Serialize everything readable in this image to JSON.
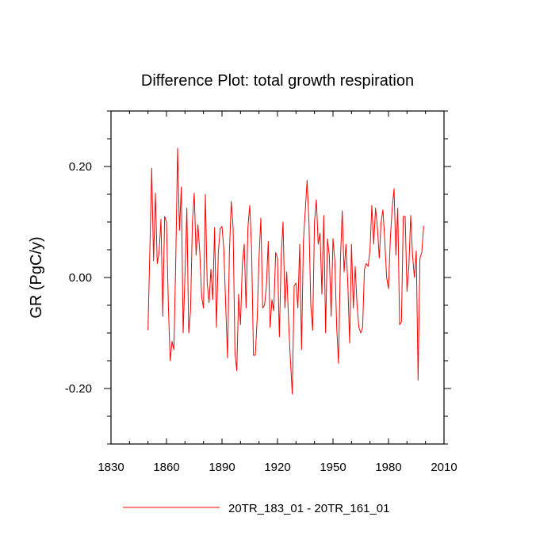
{
  "chart_data": {
    "type": "line",
    "title": "Difference Plot: total growth respiration",
    "xlabel": "",
    "ylabel": "GR  (PgC/y)",
    "xlim": [
      1830,
      2010
    ],
    "ylim": [
      -0.3,
      0.3
    ],
    "xticks": [
      1830,
      1860,
      1890,
      1920,
      1950,
      1980,
      2010
    ],
    "xtick_labels": [
      "1830",
      "1860",
      "1890",
      "1920",
      "1950",
      "1980",
      "2010"
    ],
    "yticks": [
      -0.2,
      0.0,
      0.2
    ],
    "ytick_labels": [
      "-0.20",
      "0.00",
      "0.20"
    ],
    "legend_position": "bottom",
    "series": [
      {
        "name": "20TR_183_01 - 20TR_161_01",
        "color": "#ff0000",
        "x_start": 1850,
        "x_step": 1,
        "values": [
          -0.095,
          0.05,
          0.197,
          0.03,
          0.152,
          0.025,
          0.045,
          0.105,
          -0.07,
          0.11,
          0.1,
          -0.05,
          -0.15,
          -0.115,
          -0.13,
          0.03,
          0.233,
          0.085,
          0.163,
          -0.1,
          0.005,
          0.125,
          -0.1,
          -0.06,
          0.1,
          0.152,
          0.04,
          0.095,
          0.045,
          -0.035,
          -0.055,
          0.15,
          -0.01,
          -0.045,
          0.015,
          -0.04,
          0.09,
          -0.09,
          0.045,
          0.088,
          0.092,
          0.05,
          -0.05,
          -0.145,
          0.045,
          0.137,
          0.09,
          -0.135,
          -0.168,
          -0.03,
          -0.085,
          0.025,
          0.06,
          -0.055,
          0.09,
          0.13,
          0.05,
          -0.14,
          -0.14,
          -0.075,
          0.035,
          0.107,
          -0.055,
          -0.05,
          -0.015,
          0.065,
          -0.09,
          -0.04,
          -0.06,
          0.045,
          0.035,
          -0.107,
          0.04,
          0.1,
          -0.055,
          0.01,
          -0.08,
          -0.15,
          -0.21,
          -0.015,
          -0.01,
          -0.055,
          0.06,
          -0.13,
          0.065,
          0.12,
          0.175,
          0.1,
          -0.05,
          -0.095,
          0.1,
          0.14,
          0.06,
          0.08,
          -0.03,
          0.112,
          -0.1,
          0.07,
          0.04,
          -0.07,
          0.07,
          0.03,
          -0.09,
          -0.155,
          0.03,
          0.12,
          0.01,
          0.06,
          -0.01,
          -0.118,
          0.06,
          -0.055,
          0.02,
          -0.05,
          -0.09,
          -0.1,
          -0.09,
          0.015,
          0.025,
          0.02,
          0.05,
          0.13,
          0.06,
          0.125,
          0.09,
          0.035,
          0.1,
          0.122,
          0.065,
          0.0,
          -0.02,
          0.07,
          0.125,
          0.16,
          0.04,
          0.125,
          -0.085,
          -0.08,
          0.11,
          0.11,
          -0.025,
          0.02,
          0.112,
          0.04,
          0.0,
          0.048,
          -0.185,
          0.035,
          0.045,
          0.093
        ]
      }
    ]
  }
}
